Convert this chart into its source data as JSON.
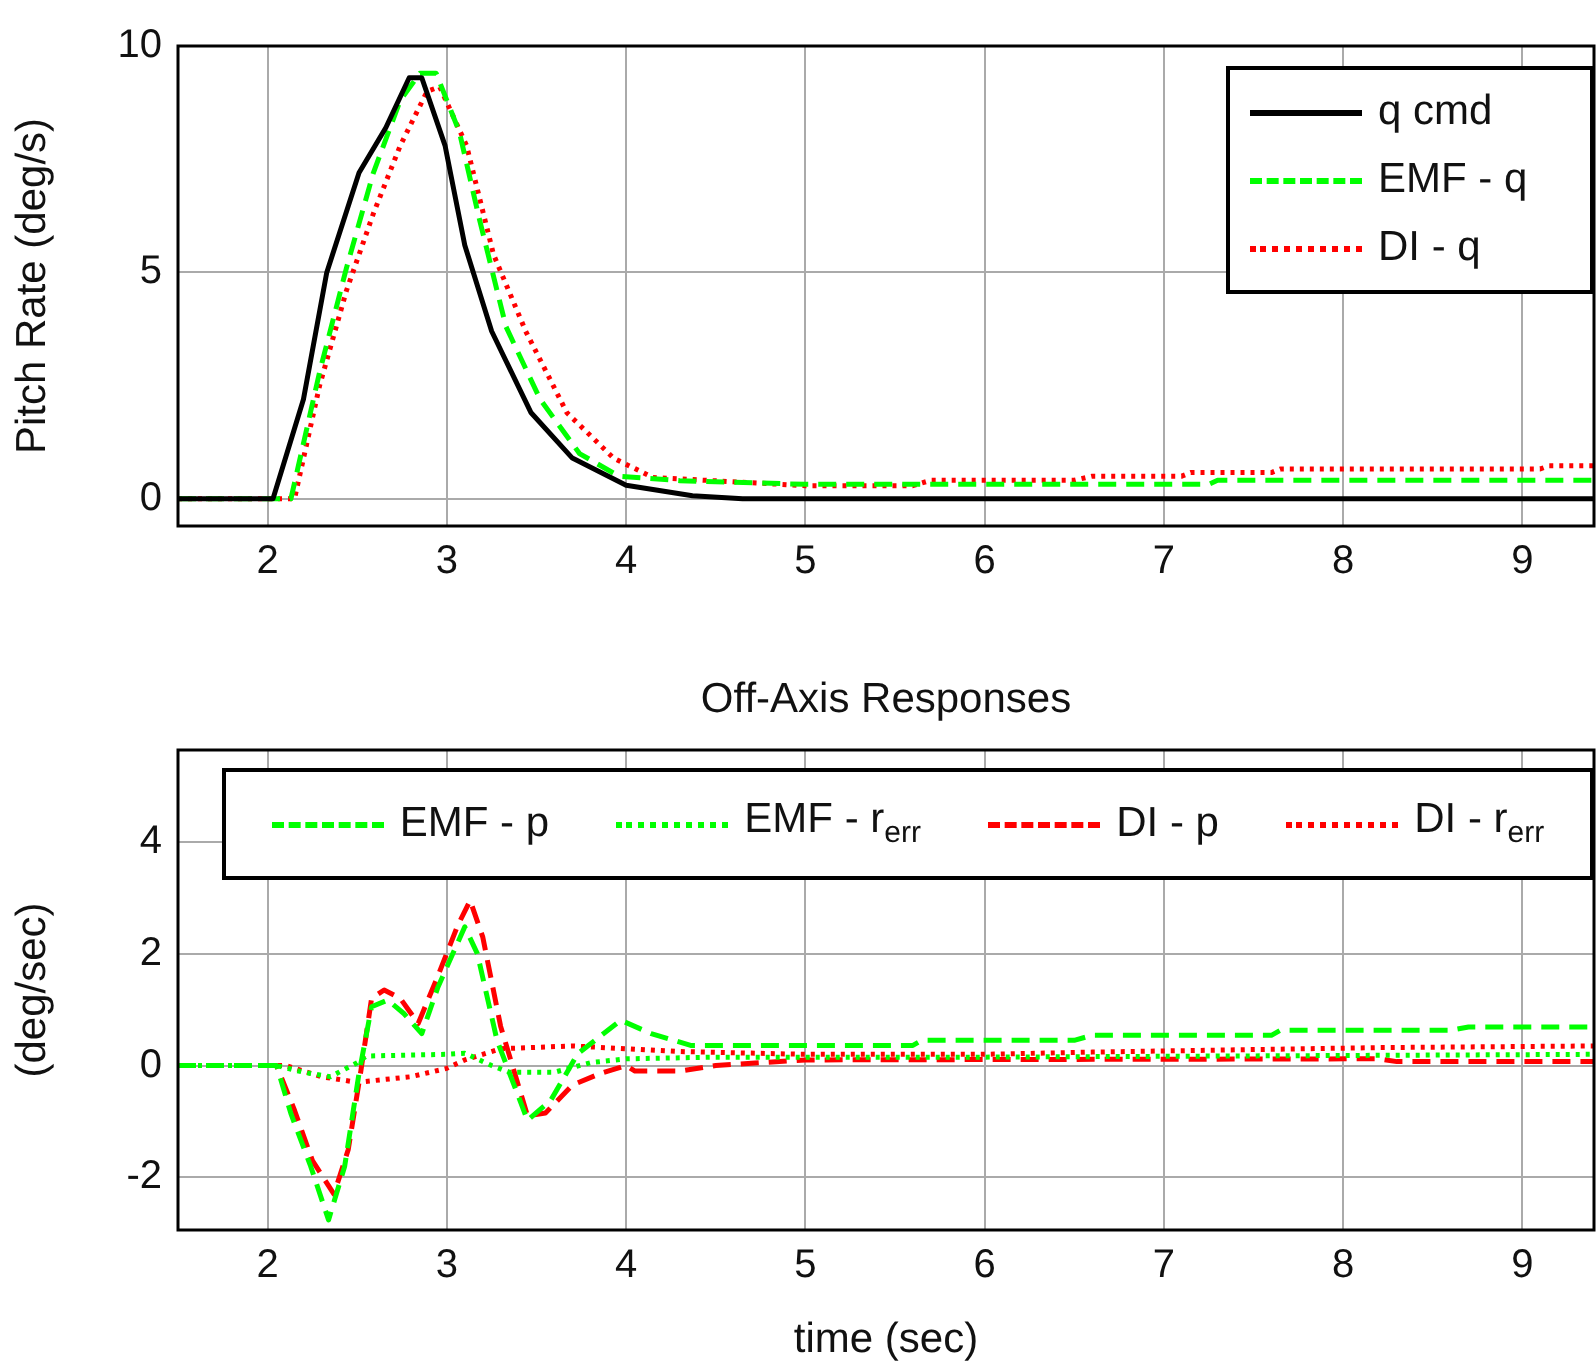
{
  "chart_data": [
    {
      "type": "line",
      "ylabel": "Pitch Rate (deg/s)",
      "xlim": [
        1.5,
        9.4
      ],
      "xticks": [
        2,
        3,
        4,
        5,
        6,
        7,
        8,
        9
      ],
      "ylim": [
        -0.6,
        10
      ],
      "yticks": [
        0,
        5,
        10
      ],
      "grid": true,
      "legend": "top right",
      "marker": "none",
      "series": [
        {
          "name": "q cmd",
          "color": "#000000",
          "line_style": "solid",
          "x": [
            1.5,
            2.03,
            2.2,
            2.33,
            2.51,
            2.66,
            2.79,
            2.86,
            2.99,
            3.1,
            3.25,
            3.47,
            3.7,
            4.0,
            4.37,
            4.65,
            9.4
          ],
          "values": [
            0,
            0,
            2.2,
            5,
            7.2,
            8.2,
            9.3,
            9.3,
            7.8,
            5.6,
            3.7,
            1.9,
            0.9,
            0.3,
            0.07,
            0,
            0
          ]
        },
        {
          "name": "EMF - q",
          "color": "#00ff00",
          "line_style": "dashed",
          "x": [
            1.5,
            2.13,
            2.29,
            2.44,
            2.59,
            2.74,
            2.85,
            2.94,
            3.07,
            3.18,
            3.33,
            3.52,
            3.74,
            3.96,
            4.3,
            5.0,
            7.25,
            7.3,
            9.4
          ],
          "values": [
            0,
            0,
            2.8,
            5.1,
            7.2,
            8.8,
            9.4,
            9.4,
            8.1,
            6.2,
            3.8,
            2.2,
            1.0,
            0.5,
            0.4,
            0.32,
            0.32,
            0.41,
            0.41
          ]
        },
        {
          "name": "DI - q",
          "color": "#ff0000",
          "line_style": "dotted",
          "x": [
            1.5,
            2.15,
            2.29,
            2.44,
            2.59,
            2.74,
            2.89,
            2.96,
            3.11,
            3.26,
            3.44,
            3.67,
            3.93,
            4.15,
            4.49,
            5.0,
            5.6,
            5.7,
            6.5,
            6.6,
            7.1,
            7.15,
            7.6,
            7.65,
            9.1,
            9.15,
            9.4
          ],
          "values": [
            0,
            0,
            2.5,
            4.6,
            6.3,
            7.8,
            9.0,
            9.1,
            7.8,
            5.4,
            3.7,
            1.9,
            0.9,
            0.47,
            0.4,
            0.29,
            0.29,
            0.41,
            0.41,
            0.5,
            0.5,
            0.58,
            0.58,
            0.66,
            0.66,
            0.73,
            0.73
          ]
        }
      ]
    },
    {
      "type": "line",
      "title": "Off-Axis Responses",
      "xlabel": "time (sec)",
      "ylabel": "(deg/sec)",
      "xlim": [
        1.5,
        9.4
      ],
      "xticks": [
        2,
        3,
        4,
        5,
        6,
        7,
        8,
        9
      ],
      "ylim": [
        -2.94,
        5.64
      ],
      "yticks": [
        -2,
        0,
        2,
        4
      ],
      "grid": true,
      "legend": "top",
      "marker": "none",
      "series": [
        {
          "name": "EMF - p",
          "color": "#00ff00",
          "line_style": "dashed",
          "x": [
            1.5,
            2.05,
            2.13,
            2.24,
            2.34,
            2.43,
            2.51,
            2.58,
            2.67,
            2.76,
            2.86,
            2.95,
            3.1,
            3.17,
            3.28,
            3.45,
            3.58,
            3.73,
            3.97,
            4.14,
            4.36,
            5.6,
            5.65,
            6.5,
            6.6,
            7.6,
            7.65,
            8.6,
            8.7,
            9.4
          ],
          "values": [
            0,
            0,
            -0.86,
            -1.8,
            -2.76,
            -1.8,
            -0.14,
            1.05,
            1.17,
            0.93,
            0.57,
            1.4,
            2.48,
            2.0,
            0.45,
            -0.98,
            -0.62,
            0.21,
            0.81,
            0.57,
            0.36,
            0.36,
            0.45,
            0.45,
            0.54,
            0.54,
            0.63,
            0.63,
            0.69,
            0.69
          ]
        },
        {
          "name": "EMF - r$_{err}$",
          "color": "#00ff00",
          "line_style": "dotted",
          "x": [
            1.5,
            2.05,
            2.2,
            2.35,
            2.5,
            2.55,
            3.0,
            3.1,
            3.25,
            3.35,
            3.6,
            3.8,
            4.0,
            4.5,
            6.0,
            9.4
          ],
          "values": [
            0,
            0,
            -0.12,
            -0.2,
            0.05,
            0.17,
            0.2,
            0.22,
            0.0,
            -0.12,
            -0.12,
            0.05,
            0.12,
            0.15,
            0.15,
            0.2
          ]
        },
        {
          "name": "DI - p",
          "color": "#ff0000",
          "line_style": "dashed",
          "x": [
            1.5,
            2.05,
            2.15,
            2.25,
            2.37,
            2.45,
            2.52,
            2.58,
            2.65,
            2.74,
            2.84,
            2.95,
            3.06,
            3.13,
            3.2,
            3.3,
            3.45,
            3.55,
            3.7,
            3.85,
            4.0,
            4.05,
            4.3,
            4.5,
            5.0,
            8.2,
            8.3,
            9.4
          ],
          "values": [
            0,
            0,
            -0.8,
            -1.7,
            -2.3,
            -1.5,
            -0.1,
            1.2,
            1.35,
            1.2,
            0.75,
            1.6,
            2.5,
            2.95,
            2.3,
            0.7,
            -0.9,
            -0.85,
            -0.35,
            -0.15,
            0.0,
            -0.1,
            -0.1,
            0.0,
            0.1,
            0.12,
            0.07,
            0.07
          ]
        },
        {
          "name": "DI - r$_{err}$",
          "color": "#ff0000",
          "line_style": "dotted",
          "x": [
            1.5,
            2.1,
            2.3,
            2.5,
            2.8,
            3.0,
            3.1,
            3.3,
            3.7,
            4.0,
            4.3,
            5.0,
            6.0,
            6.6,
            8.2,
            9.4
          ],
          "values": [
            0,
            0,
            -0.2,
            -0.3,
            -0.2,
            -0.05,
            0.1,
            0.3,
            0.35,
            0.3,
            0.25,
            0.2,
            0.2,
            0.24,
            0.32,
            0.35
          ]
        }
      ]
    }
  ]
}
